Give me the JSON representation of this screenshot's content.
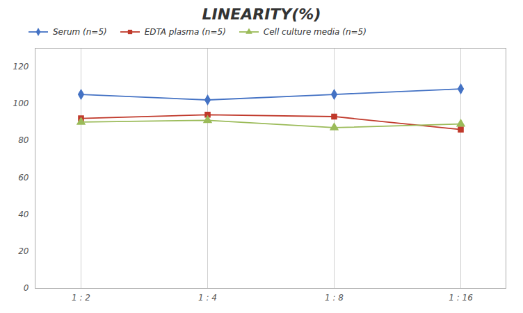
{
  "chart_data": {
    "type": "line",
    "title": "LINEARITY(%)",
    "categories": [
      "1 : 2",
      "1 : 4",
      "1 : 8",
      "1 : 16"
    ],
    "series": [
      {
        "name": "Serum (n=5)",
        "color": "#4472C4",
        "marker": "diamond",
        "values": [
          105,
          102,
          105,
          108
        ]
      },
      {
        "name": "EDTA plasma (n=5)",
        "color": "#C0392B",
        "marker": "square",
        "values": [
          92,
          94,
          93,
          86
        ]
      },
      {
        "name": "Cell culture media (n=5)",
        "color": "#9BBB59",
        "marker": "triangle",
        "values": [
          90,
          91,
          87,
          89
        ]
      }
    ],
    "ylim": [
      0,
      130
    ],
    "yticks": [
      0,
      20,
      40,
      60,
      80,
      100,
      120
    ],
    "grid": "x",
    "legend": "upper left"
  }
}
